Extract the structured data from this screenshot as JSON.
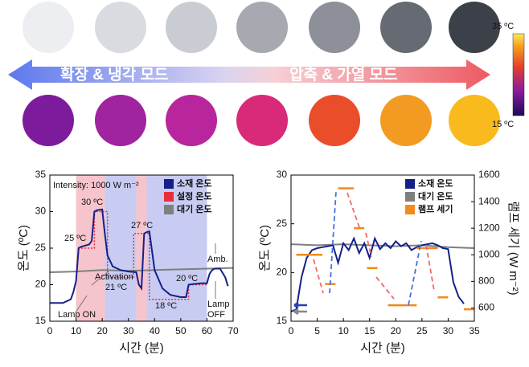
{
  "header": {
    "left_mode": "확장 & 냉각 모드",
    "right_mode": "압축 & 가열 모드",
    "colorbar_max": "35 ºC",
    "colorbar_min": "15 ºC"
  },
  "chart_data": [
    {
      "type": "line",
      "xlabel": "시간 (분)",
      "ylabel": "온도 (ºC)",
      "xlim": [
        0,
        70
      ],
      "xticks": [
        0,
        10,
        20,
        30,
        40,
        50,
        60,
        70
      ],
      "ylim": [
        15,
        35
      ],
      "yticks": [
        15,
        20,
        25,
        30,
        35
      ],
      "spans": [
        {
          "x": [
            10,
            21
          ],
          "color": "#f6c4cc"
        },
        {
          "x": [
            21,
            33
          ],
          "color": "#c8ccf2"
        },
        {
          "x": [
            33,
            37
          ],
          "color": "#f6c4cc"
        },
        {
          "x": [
            37,
            60
          ],
          "color": "#c8ccf2"
        }
      ],
      "series": [
        {
          "name": "대기 온도",
          "color": "#7f7f7f",
          "x": [
            0,
            10,
            20,
            30,
            40,
            50,
            60,
            70
          ],
          "values": [
            21.7,
            21.8,
            22,
            21.9,
            22,
            22.1,
            22.2,
            22.3
          ]
        },
        {
          "name": "설정 온도",
          "color": "#e8303a",
          "style": "dotted",
          "x": [
            12,
            17,
            17,
            22,
            22,
            32,
            32,
            38,
            38,
            53,
            53,
            60
          ],
          "values": [
            25,
            25,
            30,
            30,
            21,
            21,
            27,
            27,
            18,
            18,
            20,
            20
          ]
        },
        {
          "name": "소재 온도",
          "color": "#14208a",
          "x": [
            0,
            5,
            8,
            9,
            10,
            11,
            12,
            15,
            16,
            17,
            18,
            20,
            21,
            22,
            24,
            27,
            30,
            33,
            34,
            35,
            36,
            37,
            38,
            40,
            43,
            46,
            50,
            52,
            53,
            55,
            58,
            60,
            61,
            62,
            63,
            65,
            67,
            68
          ],
          "values": [
            17.5,
            17.5,
            18,
            19,
            20.5,
            25,
            25.2,
            25.5,
            26,
            30,
            30.2,
            30.3,
            27,
            24,
            22.5,
            22,
            21.8,
            21.7,
            20,
            19.5,
            27,
            27.2,
            27.3,
            22,
            19.5,
            18.6,
            18.3,
            18.3,
            20,
            20.1,
            20.2,
            20.2,
            21.5,
            22,
            22.2,
            22.2,
            21,
            19.8
          ]
        }
      ],
      "legend_order": [
        2,
        1,
        0
      ],
      "annotations": [
        "Intensity: 1000 W m⁻²",
        "30 ºC",
        "25 ºC",
        "27 ºC",
        "Activation",
        "21 ºC",
        "18 ºC",
        "20 ºC",
        "Amb.",
        "Lamp ON",
        "Lamp",
        "OFF"
      ]
    },
    {
      "type": "line",
      "xlabel": "시간 (분)",
      "ylabel": "온도 (ºC)",
      "y2label": "램프 세기 (W m⁻²)",
      "xlim": [
        0,
        35
      ],
      "xticks": [
        0,
        5,
        10,
        15,
        20,
        25,
        30,
        35
      ],
      "ylim": [
        15,
        30
      ],
      "yticks": [
        15,
        20,
        25,
        30
      ],
      "y2lim": [
        500,
        1600
      ],
      "y2ticks": [
        600,
        800,
        1000,
        1200,
        1400,
        1600
      ],
      "series": [
        {
          "name": "대기 온도",
          "color": "#7f7f7f",
          "x": [
            0,
            5,
            10,
            15,
            20,
            25,
            30,
            35
          ],
          "values": [
            22.9,
            22.8,
            22.9,
            22.8,
            22.7,
            22.8,
            22.6,
            22.5
          ]
        },
        {
          "name": "소재 온도",
          "color": "#14208a",
          "x": [
            0,
            1,
            2,
            3,
            4,
            5,
            6,
            8,
            9,
            10,
            11,
            12,
            13,
            14,
            15,
            16,
            17,
            18,
            19,
            20,
            21,
            22,
            23,
            24,
            25,
            26,
            27,
            28,
            29,
            30,
            31,
            32,
            33
          ],
          "values": [
            16,
            16.2,
            19.5,
            21.5,
            22.3,
            22.5,
            22.6,
            22.8,
            21,
            23,
            22.3,
            23.5,
            22,
            23,
            21.5,
            23.5,
            22.4,
            23,
            22.5,
            23.2,
            22.7,
            23,
            22.3,
            22.6,
            22.8,
            22.9,
            23,
            22.8,
            22.5,
            22.4,
            19,
            17.5,
            16.8
          ]
        },
        {
          "name": "램프 세기",
          "color": "#f28a1c",
          "axis": "y2",
          "segments": [
            {
              "x": [
                1,
                6
              ],
              "value": 1000
            },
            {
              "x": [
                6.5,
                8.5
              ],
              "value": 780
            },
            {
              "x": [
                9,
                12
              ],
              "value": 1500
            },
            {
              "x": [
                12,
                14
              ],
              "value": 1200
            },
            {
              "x": [
                14.5,
                16.5
              ],
              "value": 900
            },
            {
              "x": [
                18.5,
                24
              ],
              "value": 620
            },
            {
              "x": [
                24,
                28
              ],
              "value": 1050
            },
            {
              "x": [
                28,
                30
              ],
              "value": 680
            },
            {
              "x": [
                33,
                35
              ],
              "value": 590
            }
          ]
        }
      ],
      "legend_order": [
        1,
        0,
        2
      ]
    }
  ]
}
